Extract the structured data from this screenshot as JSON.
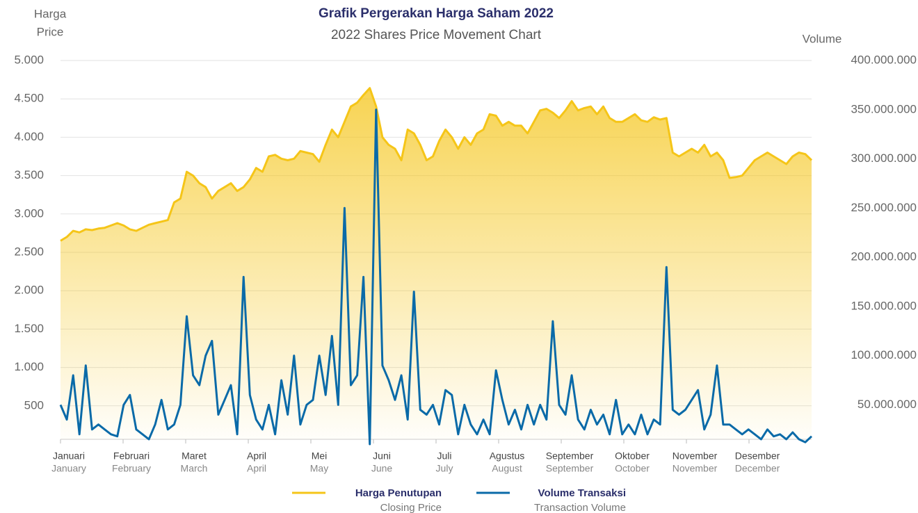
{
  "chart_data": {
    "type": "line",
    "title": "Grafik Pergerakan Harga Saham 2022",
    "subtitle": "2022 Shares Price Movement Chart",
    "y_label": "Harga",
    "y_label_en": "Price",
    "y2_label": "Volume",
    "months": [
      [
        "Januari",
        "January"
      ],
      [
        "Februari",
        "February"
      ],
      [
        "Maret",
        "March"
      ],
      [
        "April",
        "April"
      ],
      [
        "Mei",
        "May"
      ],
      [
        "Juni",
        "June"
      ],
      [
        "Juli",
        "July"
      ],
      [
        "Agustus",
        "August"
      ],
      [
        "September",
        "September"
      ],
      [
        "Oktober",
        "October"
      ],
      [
        "November",
        "November"
      ],
      [
        "Desember",
        "December"
      ]
    ],
    "ylim": [
      0,
      5000
    ],
    "yticks": [
      500,
      {
        "value": 1000,
        "label": "1.000"
      },
      {
        "value": 1500,
        "label": "1.500"
      },
      {
        "value": 2000,
        "label": "2.000"
      },
      {
        "value": 2500,
        "label": "2.500"
      },
      {
        "value": 3000,
        "label": "3.000"
      },
      {
        "value": 3500,
        "label": "3.500"
      },
      {
        "value": 4000,
        "label": "4.000"
      },
      {
        "value": 4500,
        "label": "4.500"
      },
      {
        "value": 5000,
        "label": "5.000"
      }
    ],
    "y2lim": [
      10000000,
      400000000
    ],
    "y2ticks": [
      {
        "value": 50000000,
        "label": "50.000.000"
      },
      {
        "value": 100000000,
        "label": "100.000.000"
      },
      {
        "value": 150000000,
        "label": "150.000.000"
      },
      {
        "value": 200000000,
        "label": "200.000.000"
      },
      {
        "value": 250000000,
        "label": "250.000.000"
      },
      {
        "value": 300000000,
        "label": "300.000.000"
      },
      {
        "value": 350000000,
        "label": "350.000.000"
      },
      {
        "value": 400000000,
        "label": "400.000.000"
      }
    ],
    "grid": true,
    "series": [
      {
        "name": "Harga Penutupan",
        "name_en": "Closing Price",
        "color": "#f5c518",
        "area": true,
        "values": [
          2650,
          2700,
          2780,
          2760,
          2800,
          2790,
          2810,
          2820,
          2850,
          2880,
          2850,
          2800,
          2780,
          2820,
          2860,
          2880,
          2900,
          2920,
          3150,
          3200,
          3550,
          3500,
          3400,
          3350,
          3200,
          3300,
          3350,
          3400,
          3300,
          3350,
          3450,
          3600,
          3550,
          3750,
          3770,
          3720,
          3700,
          3720,
          3820,
          3800,
          3780,
          3680,
          3900,
          4100,
          4000,
          4200,
          4400,
          4450,
          4550,
          4640,
          4400,
          4000,
          3900,
          3850,
          3700,
          4100,
          4050,
          3900,
          3700,
          3750,
          3950,
          4100,
          4000,
          3850,
          4000,
          3900,
          4050,
          4100,
          4300,
          4280,
          4150,
          4200,
          4150,
          4150,
          4050,
          4200,
          4350,
          4370,
          4320,
          4250,
          4350,
          4470,
          4350,
          4380,
          4400,
          4300,
          4400,
          4250,
          4200,
          4200,
          4250,
          4300,
          4220,
          4200,
          4260,
          4230,
          4250,
          3800,
          3750,
          3800,
          3850,
          3800,
          3900,
          3750,
          3800,
          3700,
          3470,
          3480,
          3500,
          3600,
          3700,
          3750,
          3800,
          3750,
          3700,
          3650,
          3750,
          3800,
          3780,
          3700
        ]
      },
      {
        "name": "Volume Transaksi",
        "name_en": "Transaction Volume",
        "color": "#0a6aa8",
        "axis": "y2",
        "values": [
          50000000,
          35000000,
          80000000,
          20000000,
          90000000,
          25000000,
          30000000,
          25000000,
          20000000,
          18000000,
          50000000,
          60000000,
          25000000,
          20000000,
          15000000,
          30000000,
          55000000,
          25000000,
          30000000,
          50000000,
          140000000,
          80000000,
          70000000,
          100000000,
          115000000,
          40000000,
          55000000,
          70000000,
          20000000,
          180000000,
          60000000,
          35000000,
          25000000,
          50000000,
          20000000,
          75000000,
          40000000,
          100000000,
          30000000,
          50000000,
          55000000,
          100000000,
          60000000,
          120000000,
          50000000,
          250000000,
          70000000,
          80000000,
          180000000,
          10000000,
          350000000,
          90000000,
          75000000,
          55000000,
          80000000,
          35000000,
          165000000,
          45000000,
          40000000,
          50000000,
          30000000,
          65000000,
          60000000,
          20000000,
          50000000,
          30000000,
          20000000,
          35000000,
          20000000,
          85000000,
          55000000,
          30000000,
          45000000,
          25000000,
          50000000,
          30000000,
          50000000,
          35000000,
          135000000,
          50000000,
          40000000,
          80000000,
          35000000,
          25000000,
          45000000,
          30000000,
          40000000,
          20000000,
          55000000,
          20000000,
          30000000,
          20000000,
          40000000,
          20000000,
          35000000,
          30000000,
          190000000,
          45000000,
          40000000,
          45000000,
          55000000,
          65000000,
          25000000,
          40000000,
          90000000,
          30000000,
          30000000,
          25000000,
          20000000,
          25000000,
          20000000,
          15000000,
          25000000,
          18000000,
          20000000,
          15000000,
          22000000,
          15000000,
          12000000,
          18000000
        ]
      }
    ]
  }
}
